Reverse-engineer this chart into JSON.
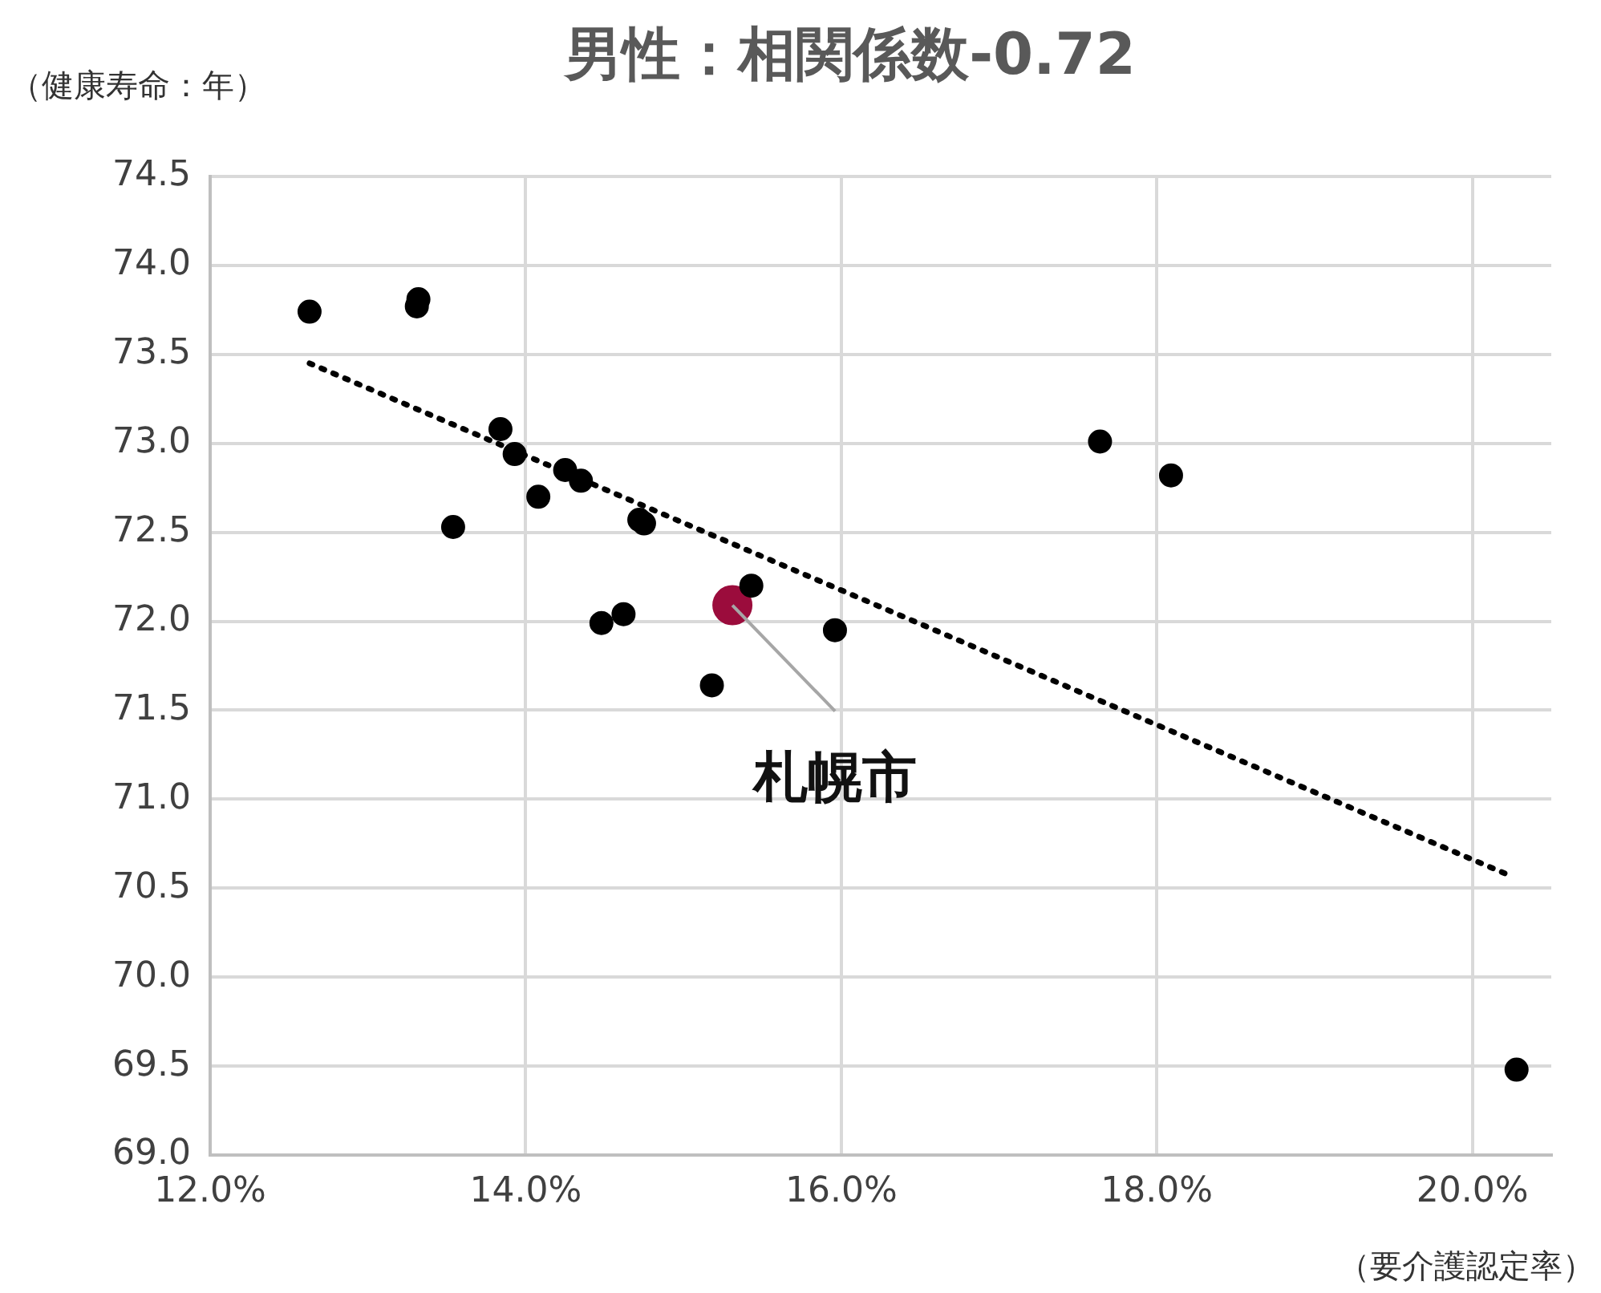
{
  "chart_data": {
    "type": "scatter",
    "title": "男性：相関係数-0.72",
    "xlabel": "（要介護認定率）",
    "ylabel": "（健康寿命：年）",
    "series": [
      {
        "color": "#000000",
        "marker": "circle",
        "x": [
          12.63,
          13.32,
          13.31,
          13.84,
          13.93,
          13.54,
          14.08,
          14.25,
          14.35,
          14.72,
          14.75,
          14.48,
          14.62,
          15.18,
          15.43,
          15.96,
          17.64,
          18.09,
          20.28
        ],
        "values": [
          73.74,
          73.81,
          73.77,
          73.08,
          72.94,
          72.53,
          72.7,
          72.85,
          72.79,
          72.57,
          72.55,
          71.99,
          72.04,
          71.64,
          72.2,
          71.95,
          73.01,
          72.82,
          69.48
        ]
      },
      {
        "color": "#9b0c3c",
        "marker": "circle",
        "x": [
          15.31
        ],
        "values": [
          72.09
        ]
      },
      {
        "type": "line",
        "color": "#000000",
        "marker": "none",
        "line_style": "dotted",
        "x": [
          12.63,
          20.24
        ],
        "values": [
          73.45,
          70.57
        ]
      }
    ],
    "annotations": [
      {
        "text": "札幌市",
        "x": 15.31,
        "y": 72.09
      }
    ],
    "xlim": [
      12,
      20.5
    ],
    "xticks": [
      {
        "value": 12,
        "label": "12.0%"
      },
      {
        "value": 14,
        "label": "14.0%"
      },
      {
        "value": 16,
        "label": "16.0%"
      },
      {
        "value": 18,
        "label": "18.0%"
      },
      {
        "value": 20,
        "label": "20.0%"
      }
    ],
    "ylim": [
      69,
      74.5
    ],
    "yticks": [
      {
        "value": 69,
        "label": "69.0"
      },
      {
        "value": 69.5,
        "label": "69.5"
      },
      {
        "value": 70,
        "label": "70.0"
      },
      {
        "value": 70.5,
        "label": "70.5"
      },
      {
        "value": 71,
        "label": "71.0"
      },
      {
        "value": 71.5,
        "label": "71.5"
      },
      {
        "value": 72,
        "label": "72.0"
      },
      {
        "value": 72.5,
        "label": "72.5"
      },
      {
        "value": 73,
        "label": "73.0"
      },
      {
        "value": 73.5,
        "label": "73.5"
      },
      {
        "value": 74,
        "label": "74.0"
      },
      {
        "value": 74.5,
        "label": "74.5"
      }
    ],
    "grid": true,
    "legend": false
  }
}
